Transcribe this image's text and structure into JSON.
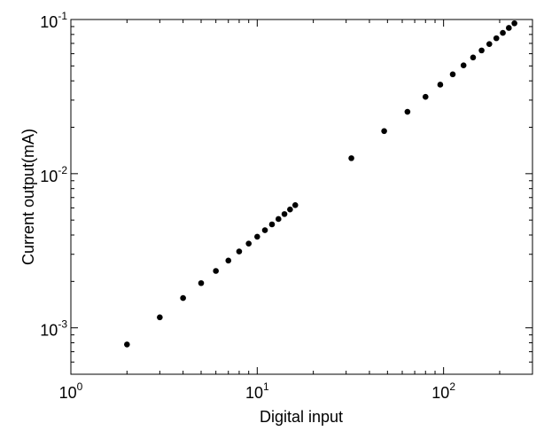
{
  "chart_data": {
    "type": "scatter",
    "title": "",
    "xlabel": "Digital input",
    "ylabel": "Current output(mA)",
    "x_scale": "log",
    "y_scale": "log",
    "xlim": [
      1,
      300
    ],
    "ylim": [
      0.0005,
      0.1
    ],
    "grid": false,
    "legend": "none",
    "marker_color": "#000000",
    "x_ticks": [
      {
        "base": "10",
        "exp": "0",
        "value": 1
      },
      {
        "base": "10",
        "exp": "1",
        "value": 10
      },
      {
        "base": "10",
        "exp": "2",
        "value": 100
      }
    ],
    "y_ticks": [
      {
        "base": "10",
        "exp": "-3",
        "value": 0.001
      },
      {
        "base": "10",
        "exp": "-2",
        "value": 0.01
      },
      {
        "base": "10",
        "exp": "-1",
        "value": 0.1
      }
    ],
    "series": [
      {
        "x": [
          2,
          3,
          4,
          5,
          6,
          7,
          8,
          9,
          10,
          11,
          12,
          13,
          14,
          15,
          16,
          32,
          48,
          64,
          80,
          96,
          112,
          128,
          144,
          160,
          176,
          192,
          208,
          224,
          240
        ],
        "y": [
          0.00078,
          0.00117,
          0.00156,
          0.00195,
          0.00234,
          0.00273,
          0.00313,
          0.00352,
          0.0039,
          0.0043,
          0.00469,
          0.00508,
          0.00547,
          0.00586,
          0.00625,
          0.0126,
          0.0189,
          0.0252,
          0.0315,
          0.0378,
          0.0441,
          0.0504,
          0.0567,
          0.063,
          0.0693,
          0.0756,
          0.0819,
          0.0882,
          0.0945
        ]
      }
    ]
  }
}
